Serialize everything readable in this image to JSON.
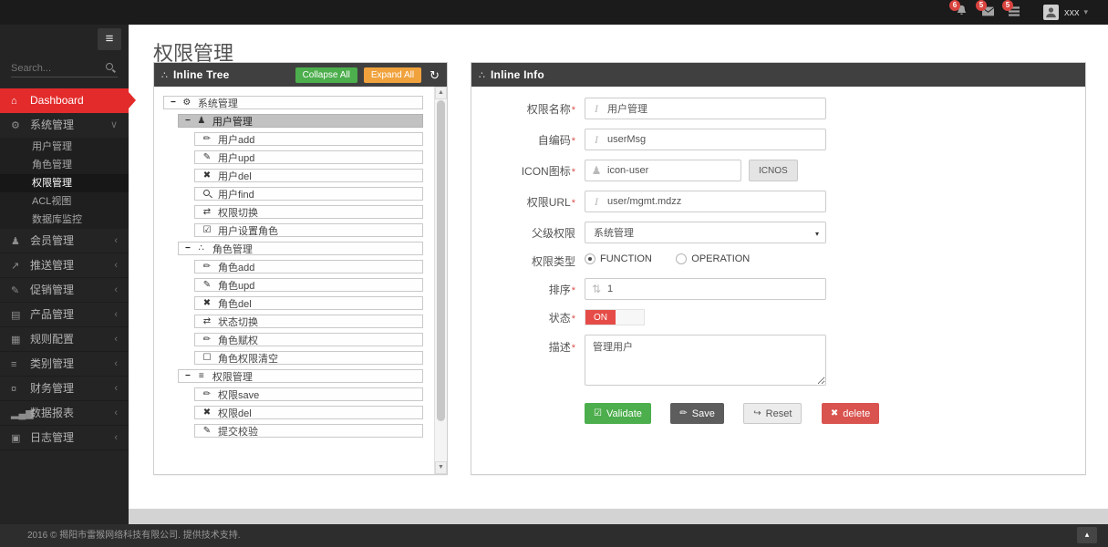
{
  "icons": {
    "minus": "−",
    "gears": "⚙",
    "user": "♟",
    "pencil": "✏",
    "edit": "✎",
    "times": "✖",
    "search": "",
    "retweet": "⇄",
    "check_square": "☑",
    "square": "☐",
    "sitemap": "∴",
    "list": "≡",
    "home": "⌂",
    "tree": "∴",
    "refresh": "↻",
    "chevron_down": "∨",
    "chevron_left": "‹",
    "caret_down": "▾",
    "chevron_up": "▴",
    "share": "↗",
    "book": "▤",
    "table": "▦",
    "money": "¤",
    "chart": "▂▄▆",
    "calendar": "▣",
    "sort": "⇅",
    "text_cursor": "I",
    "hamburger": "≡",
    "sb_up": "▲",
    "sb_down": "▼",
    "btn_validate": "☑",
    "btn_save": "✏",
    "btn_reset": "↪",
    "btn_delete": "✖"
  },
  "colors": {
    "accent_red": "#e32b2b",
    "success_green": "#4cae4c",
    "warn_orange": "#f0a23c",
    "danger_red": "#d9534f",
    "save_gray": "#5d5d5d",
    "toggle_on_red": "#e64c47",
    "panel_header": "#404040",
    "topbar": "#1b1b1b",
    "sidebar": "#242424"
  },
  "topbar": {
    "notifications": [
      {
        "icon": "bell-icon",
        "badge": "6"
      },
      {
        "icon": "envelope-icon",
        "badge": "5"
      },
      {
        "icon": "tasks-icon",
        "badge": "5"
      }
    ],
    "user": {
      "name": "xxx"
    }
  },
  "sidebar": {
    "search_placeholder": "Search...",
    "items": [
      {
        "id": "dashboard",
        "label": "Dashboard",
        "icon": "home",
        "style": "active-red"
      },
      {
        "id": "system-mgmt",
        "label": "系统管理",
        "icon": "gears",
        "style": "expanded",
        "chevron": "down"
      },
      {
        "id": "user-mgmt",
        "label": "用户管理",
        "style": "sub"
      },
      {
        "id": "role-mgmt",
        "label": "角色管理",
        "style": "sub"
      },
      {
        "id": "perm-mgmt",
        "label": "权限管理",
        "style": "sub sub-active"
      },
      {
        "id": "acl-view",
        "label": "ACL视图",
        "style": "sub"
      },
      {
        "id": "db-monitor",
        "label": "数据库监控",
        "style": "sub"
      },
      {
        "id": "member-mgmt",
        "label": "会员管理",
        "icon": "user",
        "chevron": "left"
      },
      {
        "id": "push-mgmt",
        "label": "推送管理",
        "icon": "share",
        "chevron": "left"
      },
      {
        "id": "promo-mgmt",
        "label": "促销管理",
        "icon": "edit",
        "chevron": "left"
      },
      {
        "id": "product-mgmt",
        "label": "产品管理",
        "icon": "book",
        "chevron": "left"
      },
      {
        "id": "rule-config",
        "label": "规则配置",
        "icon": "table",
        "chevron": "left"
      },
      {
        "id": "category-mgmt",
        "label": "类别管理",
        "icon": "list",
        "chevron": "left"
      },
      {
        "id": "finance-mgmt",
        "label": "财务管理",
        "icon": "money",
        "chevron": "left"
      },
      {
        "id": "data-report",
        "label": "数据报表",
        "icon": "chart",
        "chevron": "left"
      },
      {
        "id": "log-mgmt",
        "label": "日志管理",
        "icon": "calendar",
        "chevron": "left"
      }
    ]
  },
  "page": {
    "title": "权限管理"
  },
  "tree_panel": {
    "title": "Inline Tree",
    "collapse_btn": "Collapse All",
    "expand_btn": "Expand All",
    "items": [
      {
        "level": 0,
        "toggle": true,
        "icon": "gears",
        "label": "系统管理"
      },
      {
        "level": 1,
        "toggle": true,
        "icon": "user",
        "label": "用户管理",
        "selected": true
      },
      {
        "level": 2,
        "icon": "pencil",
        "label": "用户add"
      },
      {
        "level": 2,
        "icon": "edit",
        "label": "用户upd"
      },
      {
        "level": 2,
        "icon": "times",
        "label": "用户del"
      },
      {
        "level": 2,
        "icon": "search",
        "label": "用户find"
      },
      {
        "level": 2,
        "icon": "retweet",
        "label": "权限切换"
      },
      {
        "level": 2,
        "icon": "check_square",
        "label": "用户设置角色"
      },
      {
        "level": 1,
        "toggle": true,
        "icon": "sitemap",
        "label": "角色管理"
      },
      {
        "level": 2,
        "icon": "pencil",
        "label": "角色add"
      },
      {
        "level": 2,
        "icon": "edit",
        "label": "角色upd"
      },
      {
        "level": 2,
        "icon": "times",
        "label": "角色del"
      },
      {
        "level": 2,
        "icon": "retweet",
        "label": "状态切换"
      },
      {
        "level": 2,
        "icon": "pencil",
        "label": "角色赋权"
      },
      {
        "level": 2,
        "icon": "square",
        "label": "角色权限清空"
      },
      {
        "level": 1,
        "toggle": true,
        "icon": "list",
        "label": "权限管理"
      },
      {
        "level": 2,
        "icon": "pencil",
        "label": "权限save"
      },
      {
        "level": 2,
        "icon": "times",
        "label": "权限del"
      },
      {
        "level": 2,
        "icon": "edit",
        "label": "提交校验"
      }
    ]
  },
  "info_panel": {
    "title": "Inline Info",
    "required_marker": "*",
    "fields": {
      "perm_name": {
        "label": "权限名称",
        "value": "用户管理"
      },
      "code": {
        "label": "自编码",
        "value": "userMsg"
      },
      "icon_field": {
        "label": "ICON图标",
        "value": "icon-user",
        "button": "ICNOS"
      },
      "perm_url": {
        "label": "权限URL",
        "value": "user/mgmt.mdzz"
      },
      "parent": {
        "label": "父级权限",
        "value": "系统管理"
      },
      "perm_type": {
        "label": "权限类型",
        "options": [
          "FUNCTION",
          "OPERATION"
        ],
        "selected": "FUNCTION"
      },
      "sort": {
        "label": "排序",
        "value": "1"
      },
      "status": {
        "label": "状态",
        "value": "ON"
      },
      "desc": {
        "label": "描述",
        "value": "管理用户"
      }
    },
    "buttons": {
      "validate": "Validate",
      "save": "Save",
      "reset": "Reset",
      "delete": "delete"
    }
  },
  "footer": {
    "copyright": "2016 © 揭阳市雷猴网络科技有限公司. 提供技术支持."
  }
}
